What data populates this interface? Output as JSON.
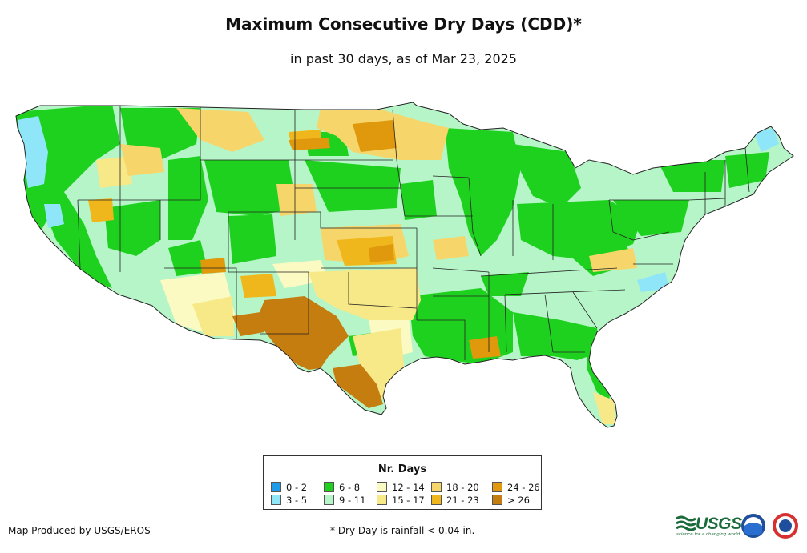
{
  "title": "Maximum Consecutive Dry Days (CDD)*",
  "subtitle": "in past 30 days, as of Mar 23, 2025",
  "legend": {
    "title": "Nr. Days",
    "items": [
      {
        "label": "0 - 2",
        "color": "#1e9be9"
      },
      {
        "label": "3 - 5",
        "color": "#8fe6f8"
      },
      {
        "label": "6 - 8",
        "color": "#1fd11f"
      },
      {
        "label": "9 - 11",
        "color": "#b6f5c8"
      },
      {
        "label": "12 - 14",
        "color": "#fbfac3"
      },
      {
        "label": "15 - 17",
        "color": "#f7e987"
      },
      {
        "label": "18 - 20",
        "color": "#f6d66b"
      },
      {
        "label": "21 - 23",
        "color": "#f0b71d"
      },
      {
        "label": "24 - 26",
        "color": "#e0980c"
      },
      {
        "label": "> 26",
        "color": "#c57d10"
      }
    ]
  },
  "footer": {
    "producer": "Map Produced by USGS/EROS",
    "note": "* Dry Day is rainfall < 0.04 in."
  },
  "logos": {
    "usgs_text": "USGS",
    "usgs_tagline": "science for a changing world",
    "icons": [
      "usgs-logo",
      "noaa-logo",
      "national-weather-service-logo"
    ]
  }
}
